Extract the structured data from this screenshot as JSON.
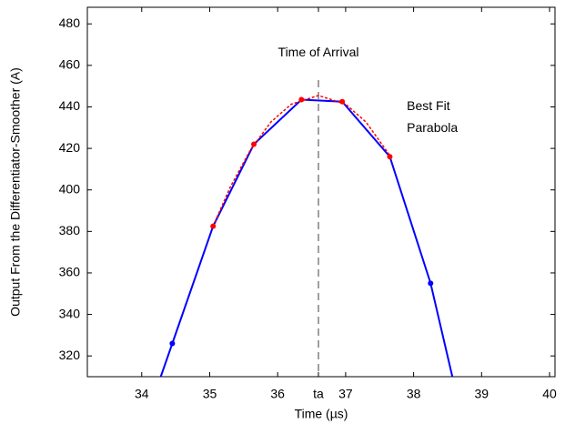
{
  "chart_data": {
    "type": "line",
    "xlabel": "Time (µs)",
    "ylabel": "Output From the Differentiator-Smoother (A)",
    "xlim": [
      33.2,
      40.08
    ],
    "ylim": [
      310,
      488
    ],
    "xticks": [
      34,
      35,
      36,
      {
        "value": 36.6,
        "label": "ta"
      },
      37,
      38,
      39,
      40
    ],
    "yticks": [
      320,
      340,
      360,
      380,
      400,
      420,
      440,
      460,
      480
    ],
    "series": [
      {
        "style": "solid",
        "color": "#0000ff",
        "x": [
          34.28,
          34.45,
          35.05,
          35.65,
          36.35,
          36.95,
          37.65,
          38.25,
          38.57
        ],
        "values": [
          310,
          326,
          382.5,
          422,
          443.5,
          442.5,
          416,
          355,
          310
        ]
      },
      {
        "style": "dashed",
        "color": "#ff0000",
        "x": [
          35.05,
          35.3,
          35.6,
          35.9,
          36.2,
          36.6,
          37.0,
          37.3,
          37.65
        ],
        "values": [
          382.5,
          401.2,
          419.3,
          432.7,
          441.3,
          445.5,
          441.3,
          432.7,
          416.6
        ]
      },
      {
        "style": "markers",
        "color": "#0000ff",
        "x": [
          34.45,
          38.25
        ],
        "values": [
          326,
          355
        ]
      },
      {
        "style": "markers",
        "color": "#ff0000",
        "x": [
          35.05,
          35.65,
          36.35,
          36.95,
          37.65
        ],
        "values": [
          382.5,
          422,
          443.5,
          442.5,
          416
        ]
      }
    ],
    "vline": {
      "x": 36.6,
      "color": "#808080"
    },
    "annotations": [
      {
        "lines": [
          "Time of Arrival"
        ],
        "x": 36.6,
        "y": 466
      },
      {
        "lines": [
          "Best Fit",
          "Parabola"
        ],
        "x": 37.9,
        "y": 440
      }
    ]
  }
}
